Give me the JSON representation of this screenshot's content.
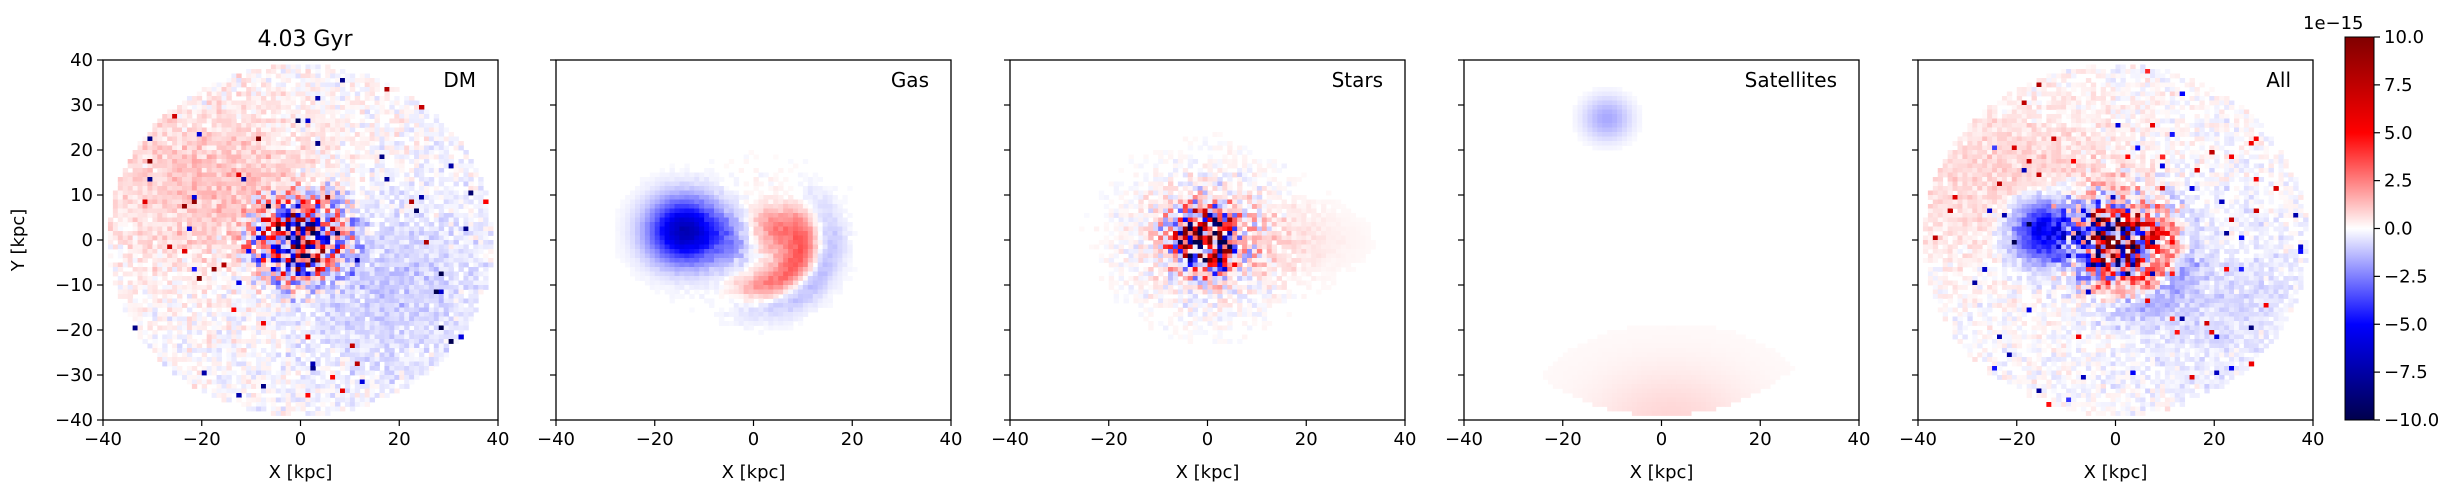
{
  "figure": {
    "time_label": "4.03 Gyr"
  },
  "chart_data": {
    "type": "heatmap",
    "title": "4.03 Gyr",
    "shared_ylabel": "Y [kpc]",
    "panels": [
      {
        "label": "DM",
        "xlabel": "X [kpc]",
        "xlim": [
          -40,
          40
        ],
        "ylim": [
          -40,
          40
        ]
      },
      {
        "label": "Gas",
        "xlabel": "X [kpc]",
        "xlim": [
          -40,
          40
        ],
        "ylim": [
          -40,
          40
        ]
      },
      {
        "label": "Stars",
        "xlabel": "X [kpc]",
        "xlim": [
          -40,
          40
        ],
        "ylim": [
          -40,
          40
        ]
      },
      {
        "label": "Satellites",
        "xlabel": "X [kpc]",
        "xlim": [
          -40,
          40
        ],
        "ylim": [
          -40,
          40
        ]
      },
      {
        "label": "All",
        "xlabel": "X [kpc]",
        "xlim": [
          -40,
          40
        ],
        "ylim": [
          -40,
          40
        ]
      }
    ],
    "x_ticks": [
      -40,
      -20,
      0,
      20,
      40
    ],
    "x_tick_labels": [
      "−40",
      "−20",
      "0",
      "20",
      "40"
    ],
    "y_ticks": [
      40,
      30,
      20,
      10,
      0,
      -10,
      -20,
      -30,
      -40
    ],
    "y_tick_labels": [
      "40",
      "30",
      "20",
      "10",
      "0",
      "−10",
      "−20",
      "−30",
      "−40"
    ],
    "colorbar": {
      "offset_label": "1e−15",
      "range": [
        -10,
        10
      ],
      "ticks": [
        10,
        7.5,
        5,
        2.5,
        0,
        -2.5,
        -5,
        -7.5,
        -10
      ],
      "tick_labels": [
        "10.0",
        "7.5",
        "5.0",
        "2.5",
        "0.0",
        "−2.5",
        "−5.0",
        "−7.5",
        "−10.0"
      ],
      "colormap": "seismic",
      "colors": [
        "#00004c",
        "#0000ff",
        "#ffffff",
        "#ff0000",
        "#800000"
      ]
    }
  }
}
